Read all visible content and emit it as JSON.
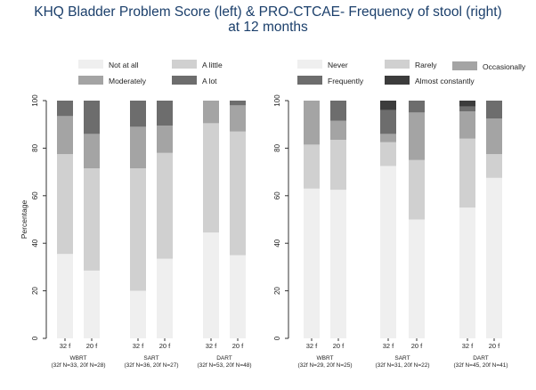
{
  "title": {
    "line1": "KHQ Bladder Problem Score (left) & PRO-CTCAE- Frequency of stool (right)",
    "line2": "at 12 months"
  },
  "chart_data": [
    {
      "type": "bar",
      "stacked": true,
      "ylabel": "Percentage",
      "ylim": [
        0,
        100
      ],
      "yticks": [
        0,
        20,
        40,
        60,
        80,
        100
      ],
      "categories": [
        "32 f",
        "20 f",
        "32 f",
        "20 f",
        "32 f",
        "20 f"
      ],
      "groups": [
        {
          "label": "WBRT",
          "sublabel": "(32f N=33, 20f N=28)"
        },
        {
          "label": "SART",
          "sublabel": "(32f N=36, 20f N=27)"
        },
        {
          "label": "DART",
          "sublabel": "(32f N=53, 20f N=48)"
        }
      ],
      "legend_position": "top",
      "series": [
        {
          "name": "Not at all",
          "color": "#efefef",
          "values": [
            35.5,
            28.5,
            20,
            33.5,
            44.5,
            35
          ]
        },
        {
          "name": "A little",
          "color": "#d0d0d0",
          "values": [
            42,
            43,
            51.5,
            44.5,
            46,
            52
          ]
        },
        {
          "name": "Moderately",
          "color": "#a4a4a4",
          "values": [
            16,
            14.5,
            17.5,
            11.5,
            9.5,
            11
          ]
        },
        {
          "name": "A lot",
          "color": "#6d6d6d",
          "values": [
            6.5,
            14,
            11,
            10.5,
            0,
            2
          ]
        }
      ]
    },
    {
      "type": "bar",
      "stacked": true,
      "ylabel": "",
      "ylim": [
        0,
        100
      ],
      "yticks": [
        0,
        20,
        40,
        60,
        80,
        100
      ],
      "categories": [
        "32 f",
        "20 f",
        "32 f",
        "20 f",
        "32 f",
        "20 f"
      ],
      "groups": [
        {
          "label": "WBRT",
          "sublabel": "(32f N=29, 20f N=25)"
        },
        {
          "label": "SART",
          "sublabel": "(32f N=31, 20f N=22)"
        },
        {
          "label": "DART",
          "sublabel": "(32f N=45, 20f N=41)"
        }
      ],
      "legend_position": "top",
      "series": [
        {
          "name": "Never",
          "color": "#efefef",
          "values": [
            63,
            62.5,
            72.5,
            50,
            55,
            67.5
          ]
        },
        {
          "name": "Rarely",
          "color": "#d0d0d0",
          "values": [
            18.5,
            21,
            10,
            25,
            29,
            10
          ]
        },
        {
          "name": "Occasionally",
          "color": "#a4a4a4",
          "values": [
            18.5,
            8,
            3.5,
            20,
            11.5,
            15
          ]
        },
        {
          "name": "Frequently",
          "color": "#6d6d6d",
          "values": [
            0,
            8.5,
            10,
            5,
            2,
            7.5
          ]
        },
        {
          "name": "Almost constantly",
          "color": "#3c3c3c",
          "values": [
            0,
            0,
            4,
            0,
            2.5,
            0
          ]
        }
      ]
    }
  ]
}
